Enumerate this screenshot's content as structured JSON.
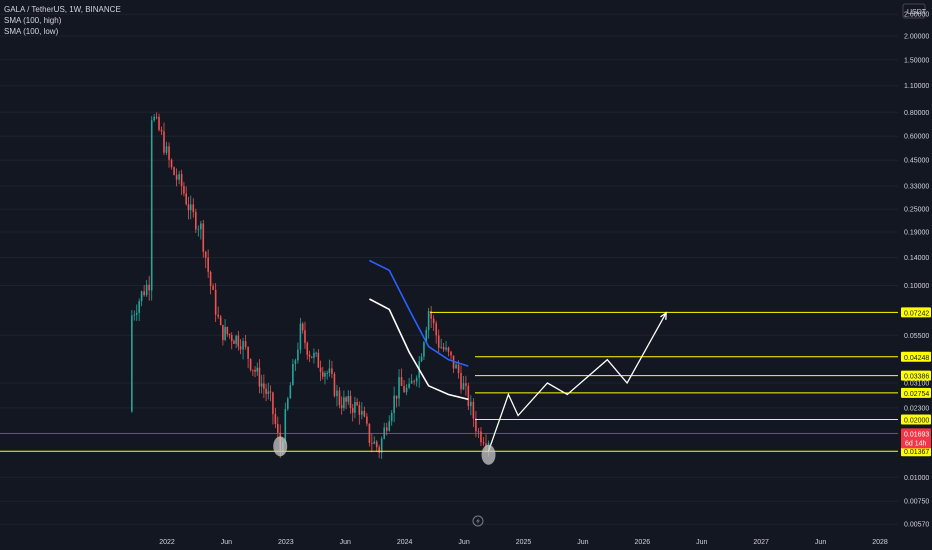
{
  "legend": {
    "symbol": "GALA / TetherUS, 1W, BINANCE",
    "sma_high": "SMA (100, high)",
    "sma_low": "SMA (100, low)"
  },
  "currency_label": "USDT",
  "icon": "lightning-icon",
  "colors": {
    "background": "#131722",
    "up": "#26a69a",
    "down": "#ef5350",
    "level": "#ffff00",
    "sma_high": "#2962ff",
    "sma_low": "#ffffff",
    "projection": "#ffffff",
    "current_price_bg": "#f23645"
  },
  "chart_data": {
    "type": "candlestick",
    "y_scale": "log",
    "ylim": [
      0.005,
      2.9
    ],
    "y_ticks": [
      "2.60000",
      "2.00000",
      "1.50000",
      "1.10000",
      "0.80000",
      "0.60000",
      "0.45000",
      "0.33000",
      "0.25000",
      "0.19000",
      "0.14000",
      "0.10000",
      "0.05500",
      "0.03100",
      "0.02300",
      "0.01700",
      "0.01000",
      "0.00750",
      "0.00570"
    ],
    "x_ticks": [
      "2022",
      "Jun",
      "2023",
      "Jun",
      "2024",
      "Jun",
      "2025",
      "Jun",
      "2026",
      "Jun",
      "2027",
      "Jun",
      "2028"
    ],
    "price_path": [
      {
        "x": "2021-09",
        "y": 0.022
      },
      {
        "x": "2021-09",
        "y": 0.07
      },
      {
        "x": "2021-10",
        "y": 0.09
      },
      {
        "x": "2021-11",
        "y": 0.11
      },
      {
        "x": "2021-11",
        "y": 0.78
      },
      {
        "x": "2021-12",
        "y": 0.6
      },
      {
        "x": "2022-01",
        "y": 0.4
      },
      {
        "x": "2022-02",
        "y": 0.33
      },
      {
        "x": "2022-03",
        "y": 0.24
      },
      {
        "x": "2022-04",
        "y": 0.2
      },
      {
        "x": "2022-05",
        "y": 0.1
      },
      {
        "x": "2022-06",
        "y": 0.058
      },
      {
        "x": "2022-08",
        "y": 0.052
      },
      {
        "x": "2022-09",
        "y": 0.04
      },
      {
        "x": "2022-11",
        "y": 0.025
      },
      {
        "x": "2022-12",
        "y": 0.014
      },
      {
        "x": "2023-01",
        "y": 0.03
      },
      {
        "x": "2023-02",
        "y": 0.058
      },
      {
        "x": "2023-03",
        "y": 0.045
      },
      {
        "x": "2023-05",
        "y": 0.034
      },
      {
        "x": "2023-06",
        "y": 0.025
      },
      {
        "x": "2023-08",
        "y": 0.023
      },
      {
        "x": "2023-09",
        "y": 0.016
      },
      {
        "x": "2023-10",
        "y": 0.014
      },
      {
        "x": "2023-11",
        "y": 0.022
      },
      {
        "x": "2023-12",
        "y": 0.03
      },
      {
        "x": "2024-01",
        "y": 0.028
      },
      {
        "x": "2024-02",
        "y": 0.04
      },
      {
        "x": "2024-03",
        "y": 0.075
      },
      {
        "x": "2024-04",
        "y": 0.05
      },
      {
        "x": "2024-05",
        "y": 0.043
      },
      {
        "x": "2024-06",
        "y": 0.035
      },
      {
        "x": "2024-07",
        "y": 0.025
      },
      {
        "x": "2024-08",
        "y": 0.017
      },
      {
        "x": "2024-09",
        "y": 0.016
      }
    ],
    "sma_high": [
      {
        "x": "2023-09",
        "y": 0.135
      },
      {
        "x": "2023-11",
        "y": 0.12
      },
      {
        "x": "2024-01",
        "y": 0.075
      },
      {
        "x": "2024-03",
        "y": 0.048
      },
      {
        "x": "2024-05",
        "y": 0.041
      },
      {
        "x": "2024-07",
        "y": 0.038
      }
    ],
    "sma_low": [
      {
        "x": "2023-09",
        "y": 0.085
      },
      {
        "x": "2023-11",
        "y": 0.075
      },
      {
        "x": "2024-01",
        "y": 0.045
      },
      {
        "x": "2024-03",
        "y": 0.03
      },
      {
        "x": "2024-05",
        "y": 0.027
      },
      {
        "x": "2024-07",
        "y": 0.0255
      }
    ],
    "levels": [
      {
        "label": "0.07242",
        "value": 0.07242
      },
      {
        "label": "0.04248",
        "value": 0.04248
      },
      {
        "label": "0.03386",
        "value": 0.03386
      },
      {
        "label": "0.02754",
        "value": 0.02754
      },
      {
        "label": "0.02000",
        "value": 0.02
      },
      {
        "label": "0.01367",
        "value": 0.01367
      }
    ],
    "current_price": {
      "value": 0.01693,
      "label": "0.01693",
      "countdown": "6d 14h"
    },
    "projection": [
      {
        "x": "2024-09",
        "y": 0.01367
      },
      {
        "x": "2024-11",
        "y": 0.027
      },
      {
        "x": "2024-12",
        "y": 0.021
      },
      {
        "x": "2025-03",
        "y": 0.031
      },
      {
        "x": "2025-05",
        "y": 0.027
      },
      {
        "x": "2025-09",
        "y": 0.041
      },
      {
        "x": "2025-11",
        "y": 0.031
      },
      {
        "x": "2026-03",
        "y": 0.072
      }
    ],
    "circled_lows": [
      {
        "x": "2022-12",
        "y": 0.0145
      },
      {
        "x": "2024-09",
        "y": 0.0131
      }
    ]
  }
}
